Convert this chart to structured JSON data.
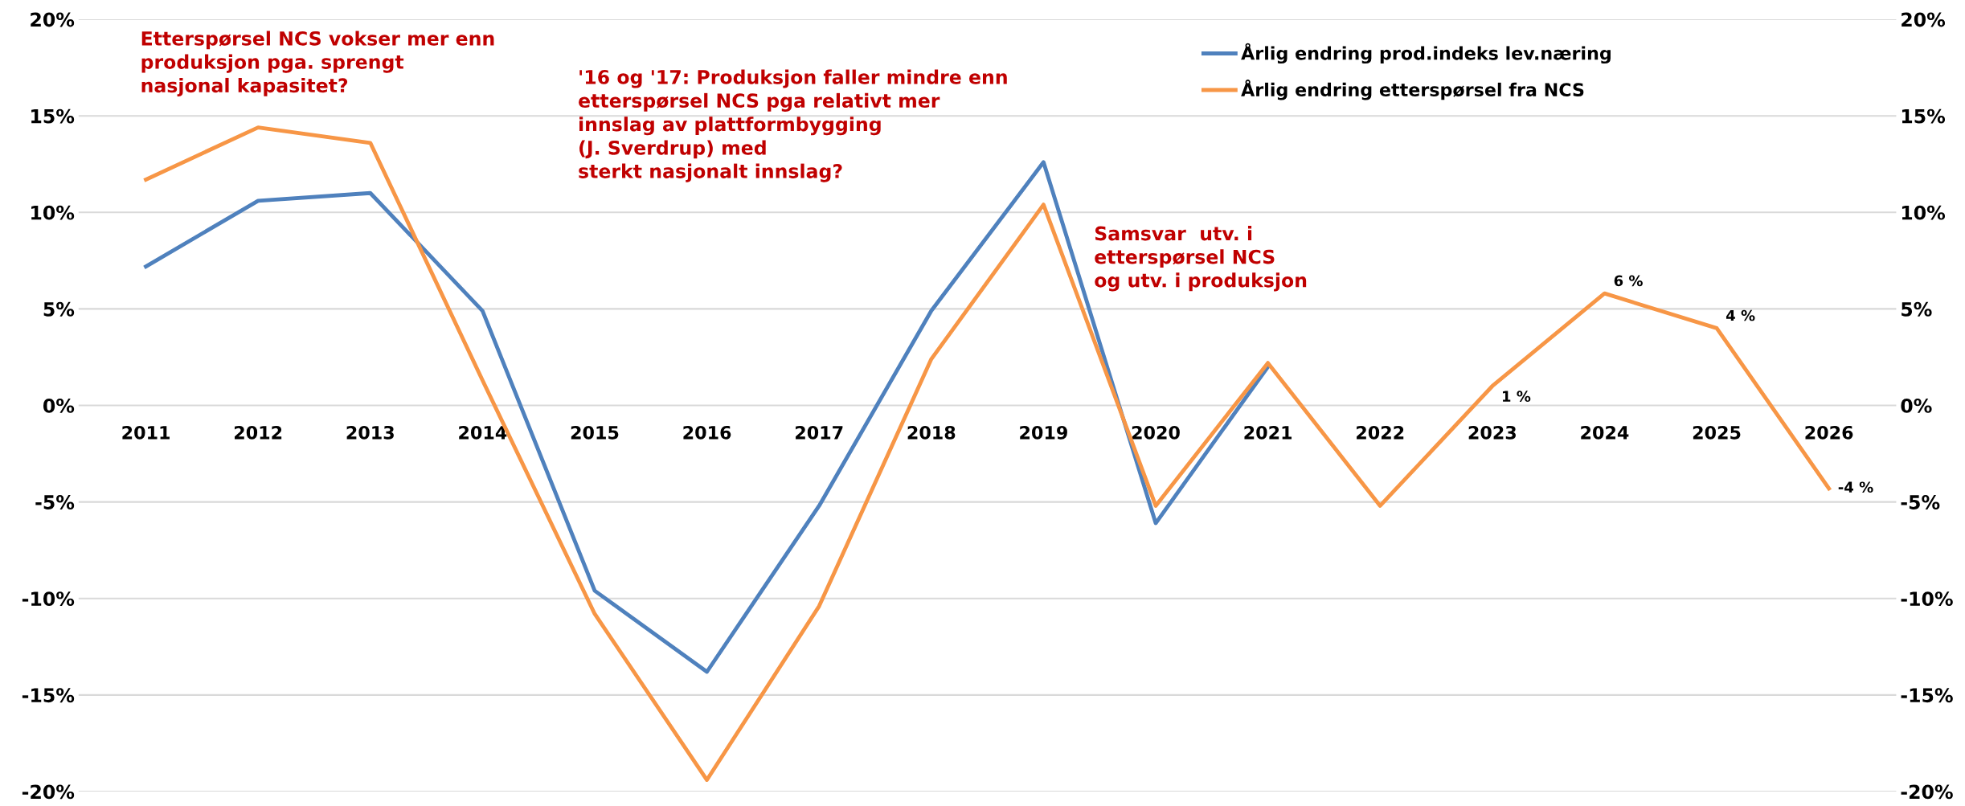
{
  "chart_data": {
    "type": "line",
    "categories": [
      "2011",
      "2012",
      "2013",
      "2014",
      "2015",
      "2016",
      "2017",
      "2018",
      "2019",
      "2020",
      "2021",
      "2022",
      "2023",
      "2024",
      "2025",
      "2026"
    ],
    "series": [
      {
        "name": "Årlig endring prod.indeks lev.næring",
        "color": "#4f81bd",
        "values": [
          7.2,
          10.6,
          11.0,
          4.9,
          -9.6,
          -13.8,
          -5.2,
          4.9,
          12.6,
          -6.1,
          2.0,
          null,
          null,
          null,
          null,
          null
        ]
      },
      {
        "name": "Årlig endring etterspørsel fra NCS",
        "color": "#f79646",
        "values": [
          11.7,
          14.4,
          13.6,
          1.3,
          -10.8,
          -19.4,
          -10.4,
          2.4,
          10.4,
          -5.2,
          2.2,
          -5.2,
          1.0,
          5.8,
          4.0,
          -4.3
        ],
        "value_labels": [
          null,
          null,
          null,
          null,
          null,
          null,
          null,
          null,
          null,
          null,
          null,
          null,
          "1 %",
          "6 %",
          "4 %",
          "-4 %"
        ]
      }
    ],
    "ylim": [
      -20,
      20
    ],
    "yticks": [
      {
        "value": -20,
        "label": "-20%"
      },
      {
        "value": -15,
        "label": "-15%"
      },
      {
        "value": -10,
        "label": "-10%"
      },
      {
        "value": -5,
        "label": "-5%"
      },
      {
        "value": 0,
        "label": "0%"
      },
      {
        "value": 5,
        "label": "5%"
      },
      {
        "value": 10,
        "label": "10%"
      },
      {
        "value": 15,
        "label": "15%"
      },
      {
        "value": 20,
        "label": "20%"
      }
    ],
    "y2lim": [
      -20,
      20
    ],
    "y2ticks": [
      {
        "value": -20,
        "label": "-20%"
      },
      {
        "value": -15,
        "label": "-15%"
      },
      {
        "value": -10,
        "label": "-10%"
      },
      {
        "value": -5,
        "label": "-5%"
      },
      {
        "value": 0,
        "label": "0%"
      },
      {
        "value": 5,
        "label": "5%"
      },
      {
        "value": 10,
        "label": "10%"
      },
      {
        "value": 15,
        "label": "15%"
      },
      {
        "value": 20,
        "label": "20%"
      }
    ],
    "grid": "y",
    "legend": "top right",
    "marker": "none",
    "line_style": "solid",
    "annotations": [
      "Etterspørsel NCS vokser mer enn\nproduksjon pga. sprengt\nnasjonal kapasitet?",
      "'16 og '17: Produksjon faller mindre enn\netterspørsel NCS pga relativt mer\ninnslag av plattformbygging\n(J. Sverdrup) med\nsterkt nasjonalt innslag?",
      "Samsvar  utv. i\netterspørsel NCS\nog utv. i produksjon"
    ]
  }
}
